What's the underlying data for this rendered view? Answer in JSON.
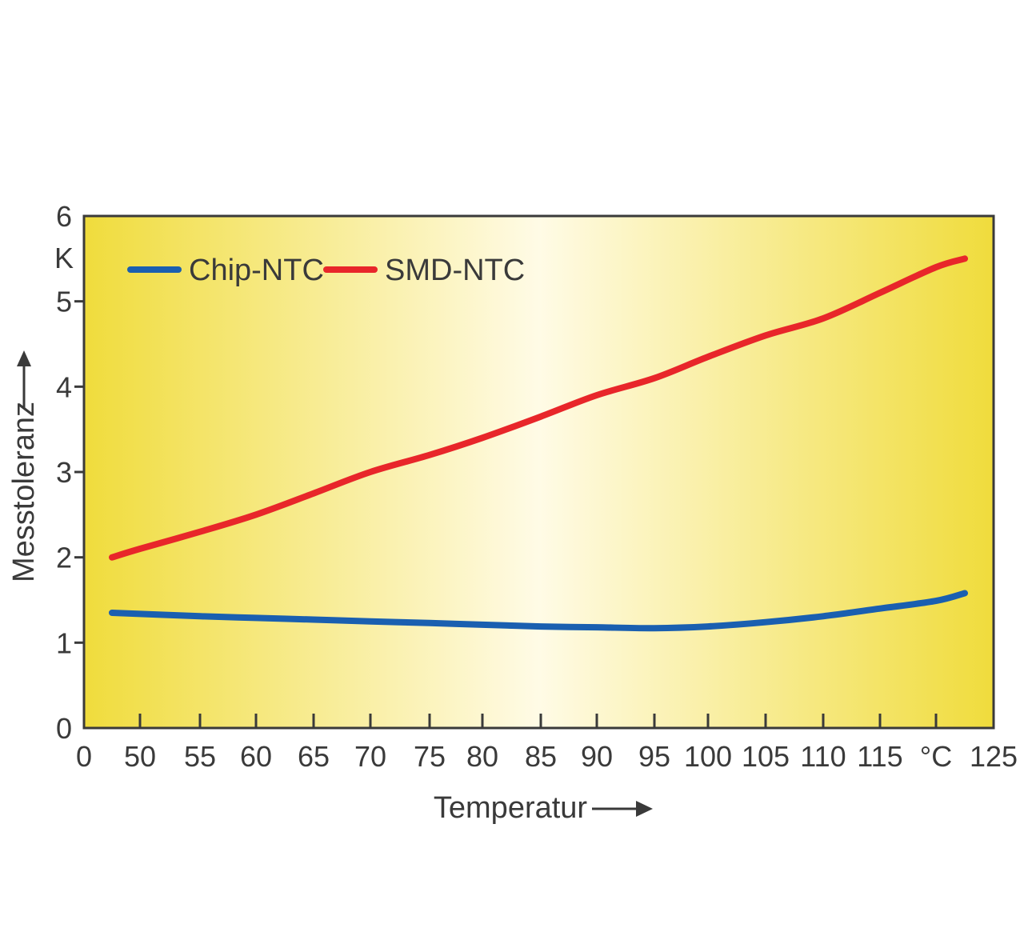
{
  "chart_data": {
    "type": "line",
    "title": "",
    "xlabel": "Temperatur",
    "ylabel": "Messtoleranz",
    "y_unit": "K",
    "x_unit": "°C",
    "x_tick_labels": [
      "0",
      "50",
      "55",
      "60",
      "65",
      "70",
      "75",
      "80",
      "85",
      "90",
      "95",
      "100",
      "105",
      "110",
      "115",
      "°C",
      "125"
    ],
    "y_tick_labels": [
      "0",
      "1",
      "2",
      "3",
      "4",
      "5",
      "6"
    ],
    "xlim": [
      45,
      125
    ],
    "ylim": [
      0,
      6
    ],
    "grid": false,
    "legend": "top-left",
    "colors": {
      "background_edge": "#f0dc3c",
      "background_center": "#fffbe6",
      "Chip-NTC": "#1a5fb0",
      "SMD-NTC": "#e8262a",
      "axis": "#3a3a3a"
    },
    "series": [
      {
        "name": "Chip-NTC",
        "x": [
          47.5,
          55,
          60,
          65,
          70,
          75,
          80,
          85,
          90,
          95,
          100,
          105,
          110,
          115,
          120,
          122.5
        ],
        "y": [
          1.35,
          1.31,
          1.29,
          1.27,
          1.25,
          1.23,
          1.21,
          1.19,
          1.18,
          1.17,
          1.19,
          1.24,
          1.31,
          1.4,
          1.49,
          1.58
        ]
      },
      {
        "name": "SMD-NTC",
        "x": [
          47.5,
          50,
          55,
          60,
          65,
          70,
          75,
          80,
          85,
          90,
          95,
          100,
          105,
          110,
          115,
          120,
          122.5
        ],
        "y": [
          2.0,
          2.1,
          2.3,
          2.5,
          2.75,
          3.0,
          3.2,
          3.4,
          3.65,
          3.9,
          4.1,
          4.35,
          4.6,
          4.8,
          5.1,
          5.4,
          5.5
        ]
      }
    ]
  }
}
